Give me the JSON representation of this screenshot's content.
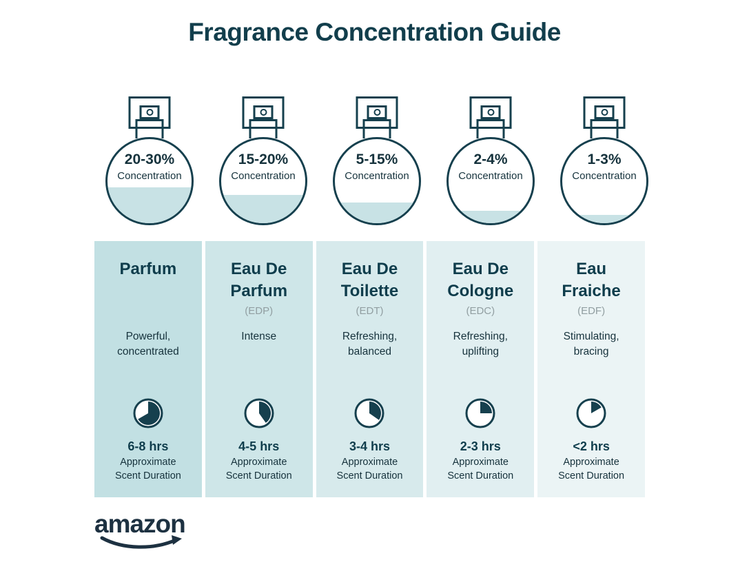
{
  "title": "Fragrance Concentration Guide",
  "brand": {
    "logo_text": "amazon"
  },
  "colors": {
    "ink": "#16404e",
    "heading": "#123e4c",
    "bottle_fill": "#c8e2e5",
    "abbr_gray": "#919ea1",
    "logo": "#1d3141"
  },
  "fragrances": [
    {
      "name_lines": [
        "Parfum"
      ],
      "abbr": "",
      "concentration": "20-30%",
      "concentration_label": "Concentration",
      "fill_percent": 43,
      "description_lines": [
        "Powerful,",
        "concentrated"
      ],
      "clock_sweep_deg": 240,
      "duration": "6-8 hrs",
      "duration_note_lines": [
        "Approximate",
        "Scent Duration"
      ],
      "column_bg": "#c2e0e3"
    },
    {
      "name_lines": [
        "Eau De",
        "Parfum"
      ],
      "abbr": "(EDP)",
      "concentration": "15-20%",
      "concentration_label": "Concentration",
      "fill_percent": 34,
      "description_lines": [
        "Intense"
      ],
      "clock_sweep_deg": 145,
      "duration": "4-5 hrs",
      "duration_note_lines": [
        "Approximate",
        "Scent Duration"
      ],
      "column_bg": "#cee6e8"
    },
    {
      "name_lines": [
        "Eau De",
        "Toilette"
      ],
      "abbr": "(EDT)",
      "concentration": "5-15%",
      "concentration_label": "Concentration",
      "fill_percent": 25,
      "description_lines": [
        "Refreshing,",
        "balanced"
      ],
      "clock_sweep_deg": 125,
      "duration": "3-4 hrs",
      "duration_note_lines": [
        "Approximate",
        "Scent Duration"
      ],
      "column_bg": "#d7eaec"
    },
    {
      "name_lines": [
        "Eau De",
        "Cologne"
      ],
      "abbr": "(EDC)",
      "concentration": "2-4%",
      "concentration_label": "Concentration",
      "fill_percent": 15,
      "description_lines": [
        "Refreshing,",
        "uplifting"
      ],
      "clock_sweep_deg": 90,
      "duration": "2-3 hrs",
      "duration_note_lines": [
        "Approximate",
        "Scent Duration"
      ],
      "column_bg": "#e1eff1"
    },
    {
      "name_lines": [
        "Eau",
        "Fraiche"
      ],
      "abbr": "(EDF)",
      "concentration": "1-3%",
      "concentration_label": "Concentration",
      "fill_percent": 10,
      "description_lines": [
        "Stimulating,",
        "bracing"
      ],
      "clock_sweep_deg": 60,
      "duration": "<2 hrs",
      "duration_note_lines": [
        "Approximate",
        "Scent Duration"
      ],
      "column_bg": "#ebf4f5"
    }
  ]
}
